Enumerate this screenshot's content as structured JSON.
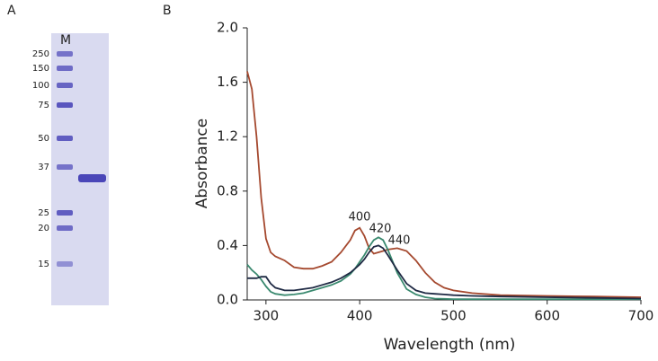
{
  "panel_a": {
    "label": "A",
    "lane_label": "M",
    "marker_labels": [
      "250",
      "150",
      "100",
      "75",
      "50",
      "37",
      "25",
      "20",
      "15"
    ]
  },
  "chart_data": {
    "type": "line",
    "panel_label": "B",
    "xlabel": "Wavelength (nm)",
    "ylabel": "Absorbance",
    "x": [
      280,
      285,
      290,
      295,
      300,
      305,
      310,
      320,
      330,
      340,
      350,
      360,
      370,
      380,
      390,
      395,
      400,
      405,
      410,
      415,
      420,
      425,
      430,
      440,
      450,
      460,
      470,
      480,
      490,
      500,
      520,
      550,
      600,
      650,
      700
    ],
    "series": [
      {
        "color": "#a5492f",
        "values": [
          1.68,
          1.55,
          1.2,
          0.75,
          0.45,
          0.35,
          0.32,
          0.29,
          0.24,
          0.23,
          0.23,
          0.25,
          0.28,
          0.35,
          0.44,
          0.51,
          0.53,
          0.47,
          0.38,
          0.34,
          0.35,
          0.36,
          0.37,
          0.38,
          0.36,
          0.29,
          0.2,
          0.13,
          0.09,
          0.07,
          0.05,
          0.035,
          0.03,
          0.025,
          0.02
        ]
      },
      {
        "color": "#3b8a70",
        "values": [
          0.26,
          0.22,
          0.19,
          0.15,
          0.1,
          0.06,
          0.045,
          0.035,
          0.04,
          0.05,
          0.07,
          0.09,
          0.11,
          0.14,
          0.19,
          0.23,
          0.28,
          0.33,
          0.39,
          0.44,
          0.46,
          0.44,
          0.37,
          0.2,
          0.08,
          0.04,
          0.02,
          0.01,
          0.008,
          0.006,
          0.005,
          0.005,
          0.005,
          0.005,
          0.005
        ]
      },
      {
        "color": "#1f2a44",
        "values": [
          0.16,
          0.16,
          0.16,
          0.17,
          0.17,
          0.12,
          0.09,
          0.07,
          0.07,
          0.08,
          0.09,
          0.11,
          0.13,
          0.16,
          0.2,
          0.23,
          0.26,
          0.3,
          0.35,
          0.39,
          0.4,
          0.38,
          0.33,
          0.22,
          0.12,
          0.07,
          0.05,
          0.045,
          0.04,
          0.035,
          0.03,
          0.025,
          0.02,
          0.015,
          0.01
        ]
      }
    ],
    "annotations": [
      "400",
      "420",
      "440"
    ],
    "xlim": [
      280,
      700
    ],
    "xticks": [
      300,
      400,
      500,
      600,
      700
    ],
    "ylim": [
      0,
      2.0
    ],
    "yticks": [
      {
        "value": 0,
        "label": "0.0"
      },
      0.4,
      0.8,
      1.2,
      1.6,
      {
        "value": 2.0,
        "label": "2.0"
      }
    ]
  }
}
